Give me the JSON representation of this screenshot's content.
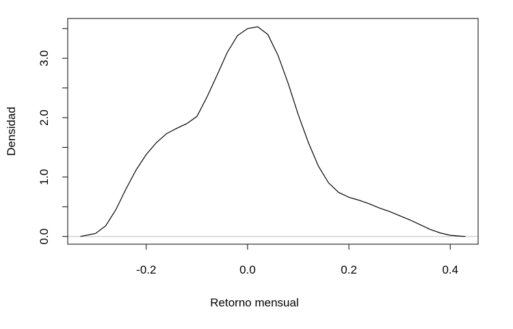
{
  "chart_data": {
    "type": "line",
    "title": "",
    "xlabel": "Retorno mensual",
    "ylabel": "Densidad",
    "xlim": [
      -0.355,
      0.455
    ],
    "ylim": [
      -0.13,
      3.67
    ],
    "x_ticks": [
      -0.2,
      0.0,
      0.2,
      0.4
    ],
    "x_tick_labels": [
      "-0.2",
      "0.0",
      "0.2",
      "0.4"
    ],
    "y_ticks": [
      0.0,
      0.5,
      1.0,
      1.5,
      2.0,
      2.5,
      3.0,
      3.5
    ],
    "y_tick_labels": [
      "0.0",
      "",
      "1.0",
      "",
      "2.0",
      "",
      "3.0",
      ""
    ],
    "grid": false,
    "legend": "none",
    "baseline": 0,
    "colors": {
      "line": "#000000",
      "baseline": "#bebebe",
      "frame": "#000000"
    },
    "series": [
      {
        "x": [
          -0.33,
          -0.3,
          -0.28,
          -0.26,
          -0.24,
          -0.22,
          -0.2,
          -0.18,
          -0.16,
          -0.14,
          -0.12,
          -0.1,
          -0.08,
          -0.06,
          -0.04,
          -0.02,
          0.0,
          0.02,
          0.04,
          0.06,
          0.08,
          0.1,
          0.12,
          0.14,
          0.16,
          0.18,
          0.2,
          0.22,
          0.24,
          0.26,
          0.28,
          0.3,
          0.32,
          0.34,
          0.36,
          0.38,
          0.4,
          0.42,
          0.43
        ],
        "y": [
          0.0,
          0.05,
          0.18,
          0.45,
          0.8,
          1.12,
          1.38,
          1.58,
          1.73,
          1.82,
          1.9,
          2.02,
          2.35,
          2.72,
          3.1,
          3.38,
          3.5,
          3.53,
          3.4,
          3.05,
          2.58,
          2.05,
          1.58,
          1.18,
          0.9,
          0.74,
          0.66,
          0.61,
          0.55,
          0.48,
          0.42,
          0.35,
          0.28,
          0.2,
          0.12,
          0.06,
          0.02,
          0.005,
          0.0
        ]
      }
    ]
  }
}
